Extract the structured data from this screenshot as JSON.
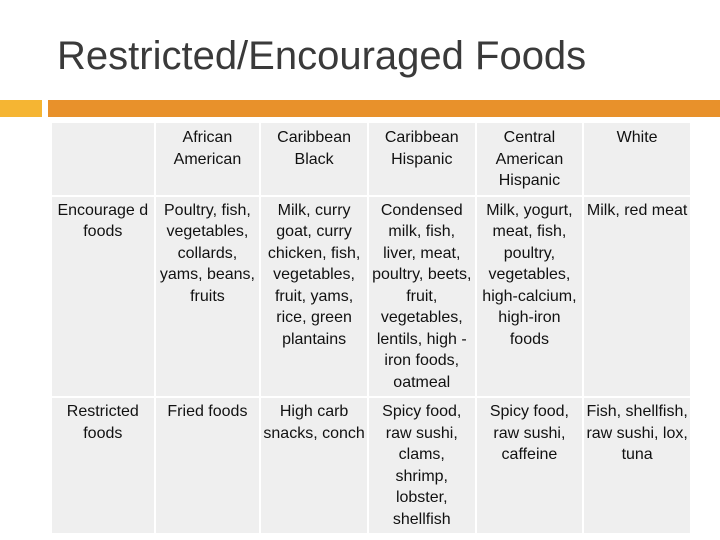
{
  "slide": {
    "title": "Restricted/Encouraged Foods"
  },
  "colors": {
    "accent_light": "#f5b533",
    "accent_dark": "#e8912b",
    "cell_bg": "#efefef"
  },
  "table": {
    "corner": "",
    "columns": [
      "African American",
      "Caribbean Black",
      "Caribbean Hispanic",
      "Central American Hispanic",
      "White"
    ],
    "rows": [
      {
        "label": "Encourage d foods",
        "cells": [
          "Poultry, fish, vegetables, collards, yams, beans, fruits",
          "Milk, curry goat, curry chicken, fish, vegetables, fruit, yams, rice, green plantains",
          "Condensed milk, fish, liver, meat, poultry, beets, fruit, vegetables, lentils, high -iron foods, oatmeal",
          "Milk, yogurt, meat, fish, poultry, vegetables, high-calcium, high-iron foods",
          "Milk, red meat"
        ]
      },
      {
        "label": "Restricted foods",
        "cells": [
          "Fried foods",
          "High carb snacks, conch",
          "Spicy food, raw sushi, clams, shrimp, lobster, shellfish",
          "Spicy food, raw sushi, caffeine",
          "Fish, shellfish, raw sushi, lox, tuna"
        ]
      }
    ]
  }
}
